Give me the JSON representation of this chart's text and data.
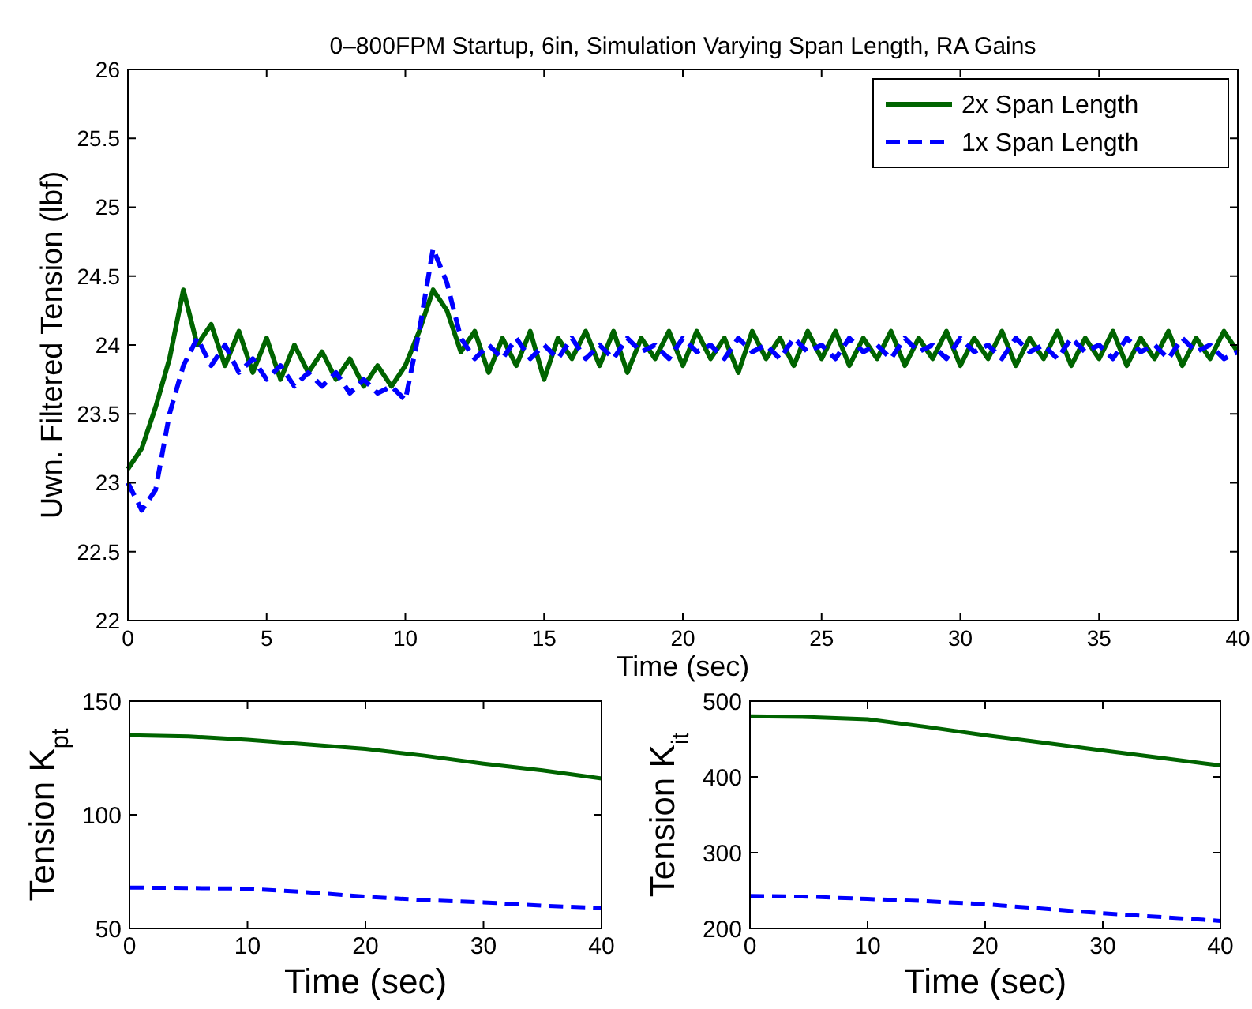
{
  "chart_data": [
    {
      "type": "line",
      "title": "0–800FPM Startup, 6in, Simulation Varying Span Length, RA Gains",
      "xlabel": "Time (sec)",
      "ylabel": "Uwn. Filtered Tension (lbf)",
      "xlim": [
        0,
        40
      ],
      "ylim": [
        22,
        26
      ],
      "xticks": [
        0,
        5,
        10,
        15,
        20,
        25,
        30,
        35,
        40
      ],
      "yticks": [
        22,
        22.5,
        23,
        23.5,
        24,
        24.5,
        25,
        25.5,
        26
      ],
      "legend": "top right",
      "grid": false,
      "x": [
        0,
        0.5,
        1,
        1.5,
        2,
        2.5,
        3,
        3.5,
        4,
        4.5,
        5,
        5.5,
        6,
        6.5,
        7,
        7.5,
        8,
        8.5,
        9,
        9.5,
        10,
        10.5,
        11,
        11.5,
        12,
        12.5,
        13,
        13.5,
        14,
        14.5,
        15,
        15.5,
        16,
        16.5,
        17,
        17.5,
        18,
        18.5,
        19,
        19.5,
        20,
        20.5,
        21,
        21.5,
        22,
        22.5,
        23,
        23.5,
        24,
        24.5,
        25,
        25.5,
        26,
        26.5,
        27,
        27.5,
        28,
        28.5,
        29,
        29.5,
        30,
        30.5,
        31,
        31.5,
        32,
        32.5,
        33,
        33.5,
        34,
        34.5,
        35,
        35.5,
        36,
        36.5,
        37,
        37.5,
        38,
        38.5,
        39,
        39.5,
        40
      ],
      "series": [
        {
          "name": "2x Span Length",
          "color": "#006400",
          "line_style": "solid",
          "values": [
            23.1,
            23.25,
            23.55,
            23.9,
            24.4,
            24.0,
            24.15,
            23.85,
            24.1,
            23.8,
            24.05,
            23.75,
            24.0,
            23.8,
            23.95,
            23.75,
            23.9,
            23.7,
            23.85,
            23.7,
            23.85,
            24.1,
            24.4,
            24.25,
            23.95,
            24.1,
            23.8,
            24.05,
            23.85,
            24.1,
            23.75,
            24.05,
            23.9,
            24.1,
            23.85,
            24.1,
            23.8,
            24.05,
            23.9,
            24.1,
            23.85,
            24.1,
            23.9,
            24.05,
            23.8,
            24.1,
            23.9,
            24.05,
            23.85,
            24.1,
            23.9,
            24.1,
            23.85,
            24.05,
            23.9,
            24.1,
            23.85,
            24.05,
            23.9,
            24.1,
            23.85,
            24.05,
            23.9,
            24.1,
            23.85,
            24.05,
            23.9,
            24.1,
            23.85,
            24.05,
            23.9,
            24.1,
            23.85,
            24.05,
            23.9,
            24.1,
            23.85,
            24.05,
            23.9,
            24.1,
            23.95
          ]
        },
        {
          "name": "1x Span Length",
          "color": "#0000ff",
          "line_style": "dashed",
          "values": [
            23.0,
            22.8,
            22.95,
            23.5,
            23.85,
            24.05,
            23.85,
            24.0,
            23.8,
            23.9,
            23.75,
            23.85,
            23.7,
            23.8,
            23.7,
            23.8,
            23.65,
            23.75,
            23.65,
            23.7,
            23.6,
            24.1,
            24.7,
            24.45,
            24.05,
            23.9,
            24.0,
            23.9,
            24.05,
            23.9,
            24.0,
            23.9,
            24.05,
            23.9,
            24.0,
            23.9,
            24.05,
            23.95,
            24.0,
            23.9,
            24.05,
            23.95,
            24.0,
            23.9,
            24.05,
            23.95,
            24.0,
            23.9,
            24.05,
            23.95,
            24.0,
            23.9,
            24.05,
            23.95,
            24.0,
            23.9,
            24.05,
            23.95,
            24.0,
            23.9,
            24.05,
            23.95,
            24.0,
            23.9,
            24.05,
            23.95,
            24.0,
            23.9,
            24.05,
            23.95,
            24.0,
            23.9,
            24.05,
            23.95,
            24.0,
            23.9,
            24.05,
            23.95,
            24.0,
            23.9,
            23.95
          ]
        }
      ]
    },
    {
      "type": "line",
      "xlabel": "Time (sec)",
      "ylabel": "Tension K$_{pt}$",
      "xlim": [
        0,
        40
      ],
      "ylim": [
        50,
        150
      ],
      "xticks": [
        0,
        10,
        20,
        30,
        40
      ],
      "yticks": [
        50,
        100,
        150
      ],
      "grid": false,
      "x": [
        0,
        5,
        10,
        15,
        20,
        25,
        30,
        35,
        40
      ],
      "series": [
        {
          "color": "#006400",
          "line_style": "solid",
          "values": [
            135,
            134.5,
            133,
            131,
            129,
            126,
            122.5,
            119.5,
            116
          ]
        },
        {
          "color": "#0000ff",
          "line_style": "dashed",
          "values": [
            68,
            67.8,
            67.5,
            66,
            64,
            62.5,
            61.5,
            60,
            59
          ]
        }
      ]
    },
    {
      "type": "line",
      "xlabel": "Time (sec)",
      "ylabel": "Tension K$_{it}$",
      "xlim": [
        0,
        40
      ],
      "ylim": [
        200,
        500
      ],
      "xticks": [
        0,
        10,
        20,
        30,
        40
      ],
      "yticks": [
        200,
        300,
        400,
        500
      ],
      "grid": false,
      "x": [
        0,
        5,
        10,
        15,
        20,
        25,
        30,
        35,
        40
      ],
      "series": [
        {
          "color": "#006400",
          "line_style": "solid",
          "values": [
            480,
            479,
            476,
            466,
            455,
            445,
            435,
            425,
            415
          ]
        },
        {
          "color": "#0000ff",
          "line_style": "dashed",
          "values": [
            243,
            242,
            239,
            236,
            232,
            226,
            220,
            215,
            210
          ]
        }
      ]
    }
  ]
}
